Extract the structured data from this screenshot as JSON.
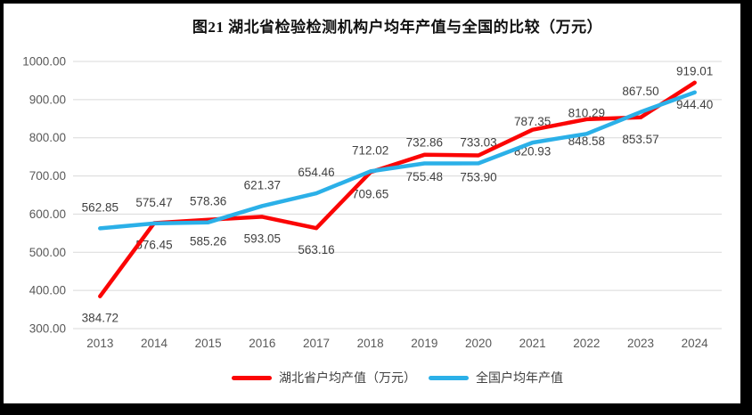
{
  "chart_data": {
    "type": "line",
    "title": "图21  湖北省检验检测机构户均年产值与全国的比较（万元）",
    "categories": [
      "2013",
      "2014",
      "2015",
      "2016",
      "2017",
      "2018",
      "2019",
      "2020",
      "2021",
      "2022",
      "2023",
      "2024"
    ],
    "series": [
      {
        "name": "湖北省户均产值（万元）",
        "color": "#fb0505",
        "label_position": "below",
        "values": [
          384.72,
          576.45,
          585.26,
          593.05,
          563.16,
          709.65,
          755.48,
          753.9,
          820.93,
          848.58,
          853.57,
          944.4
        ]
      },
      {
        "name": "全国户均年产值",
        "color": "#2bb0e8",
        "label_position": "above",
        "values": [
          562.85,
          575.47,
          578.36,
          621.37,
          654.46,
          712.02,
          732.86,
          733.03,
          787.35,
          810.29,
          867.5,
          919.01
        ]
      }
    ],
    "ylim": [
      300,
      1000
    ],
    "ytick_step": 100,
    "ytick_labels": [
      "1000.00",
      "900.00",
      "800.00",
      "700.00",
      "600.00",
      "500.00",
      "400.00",
      "300.00"
    ],
    "grid": true,
    "legend_position": "bottom",
    "grid_color": "#d9d9d9",
    "axis_color": "#595959",
    "label_color": "#404040"
  }
}
